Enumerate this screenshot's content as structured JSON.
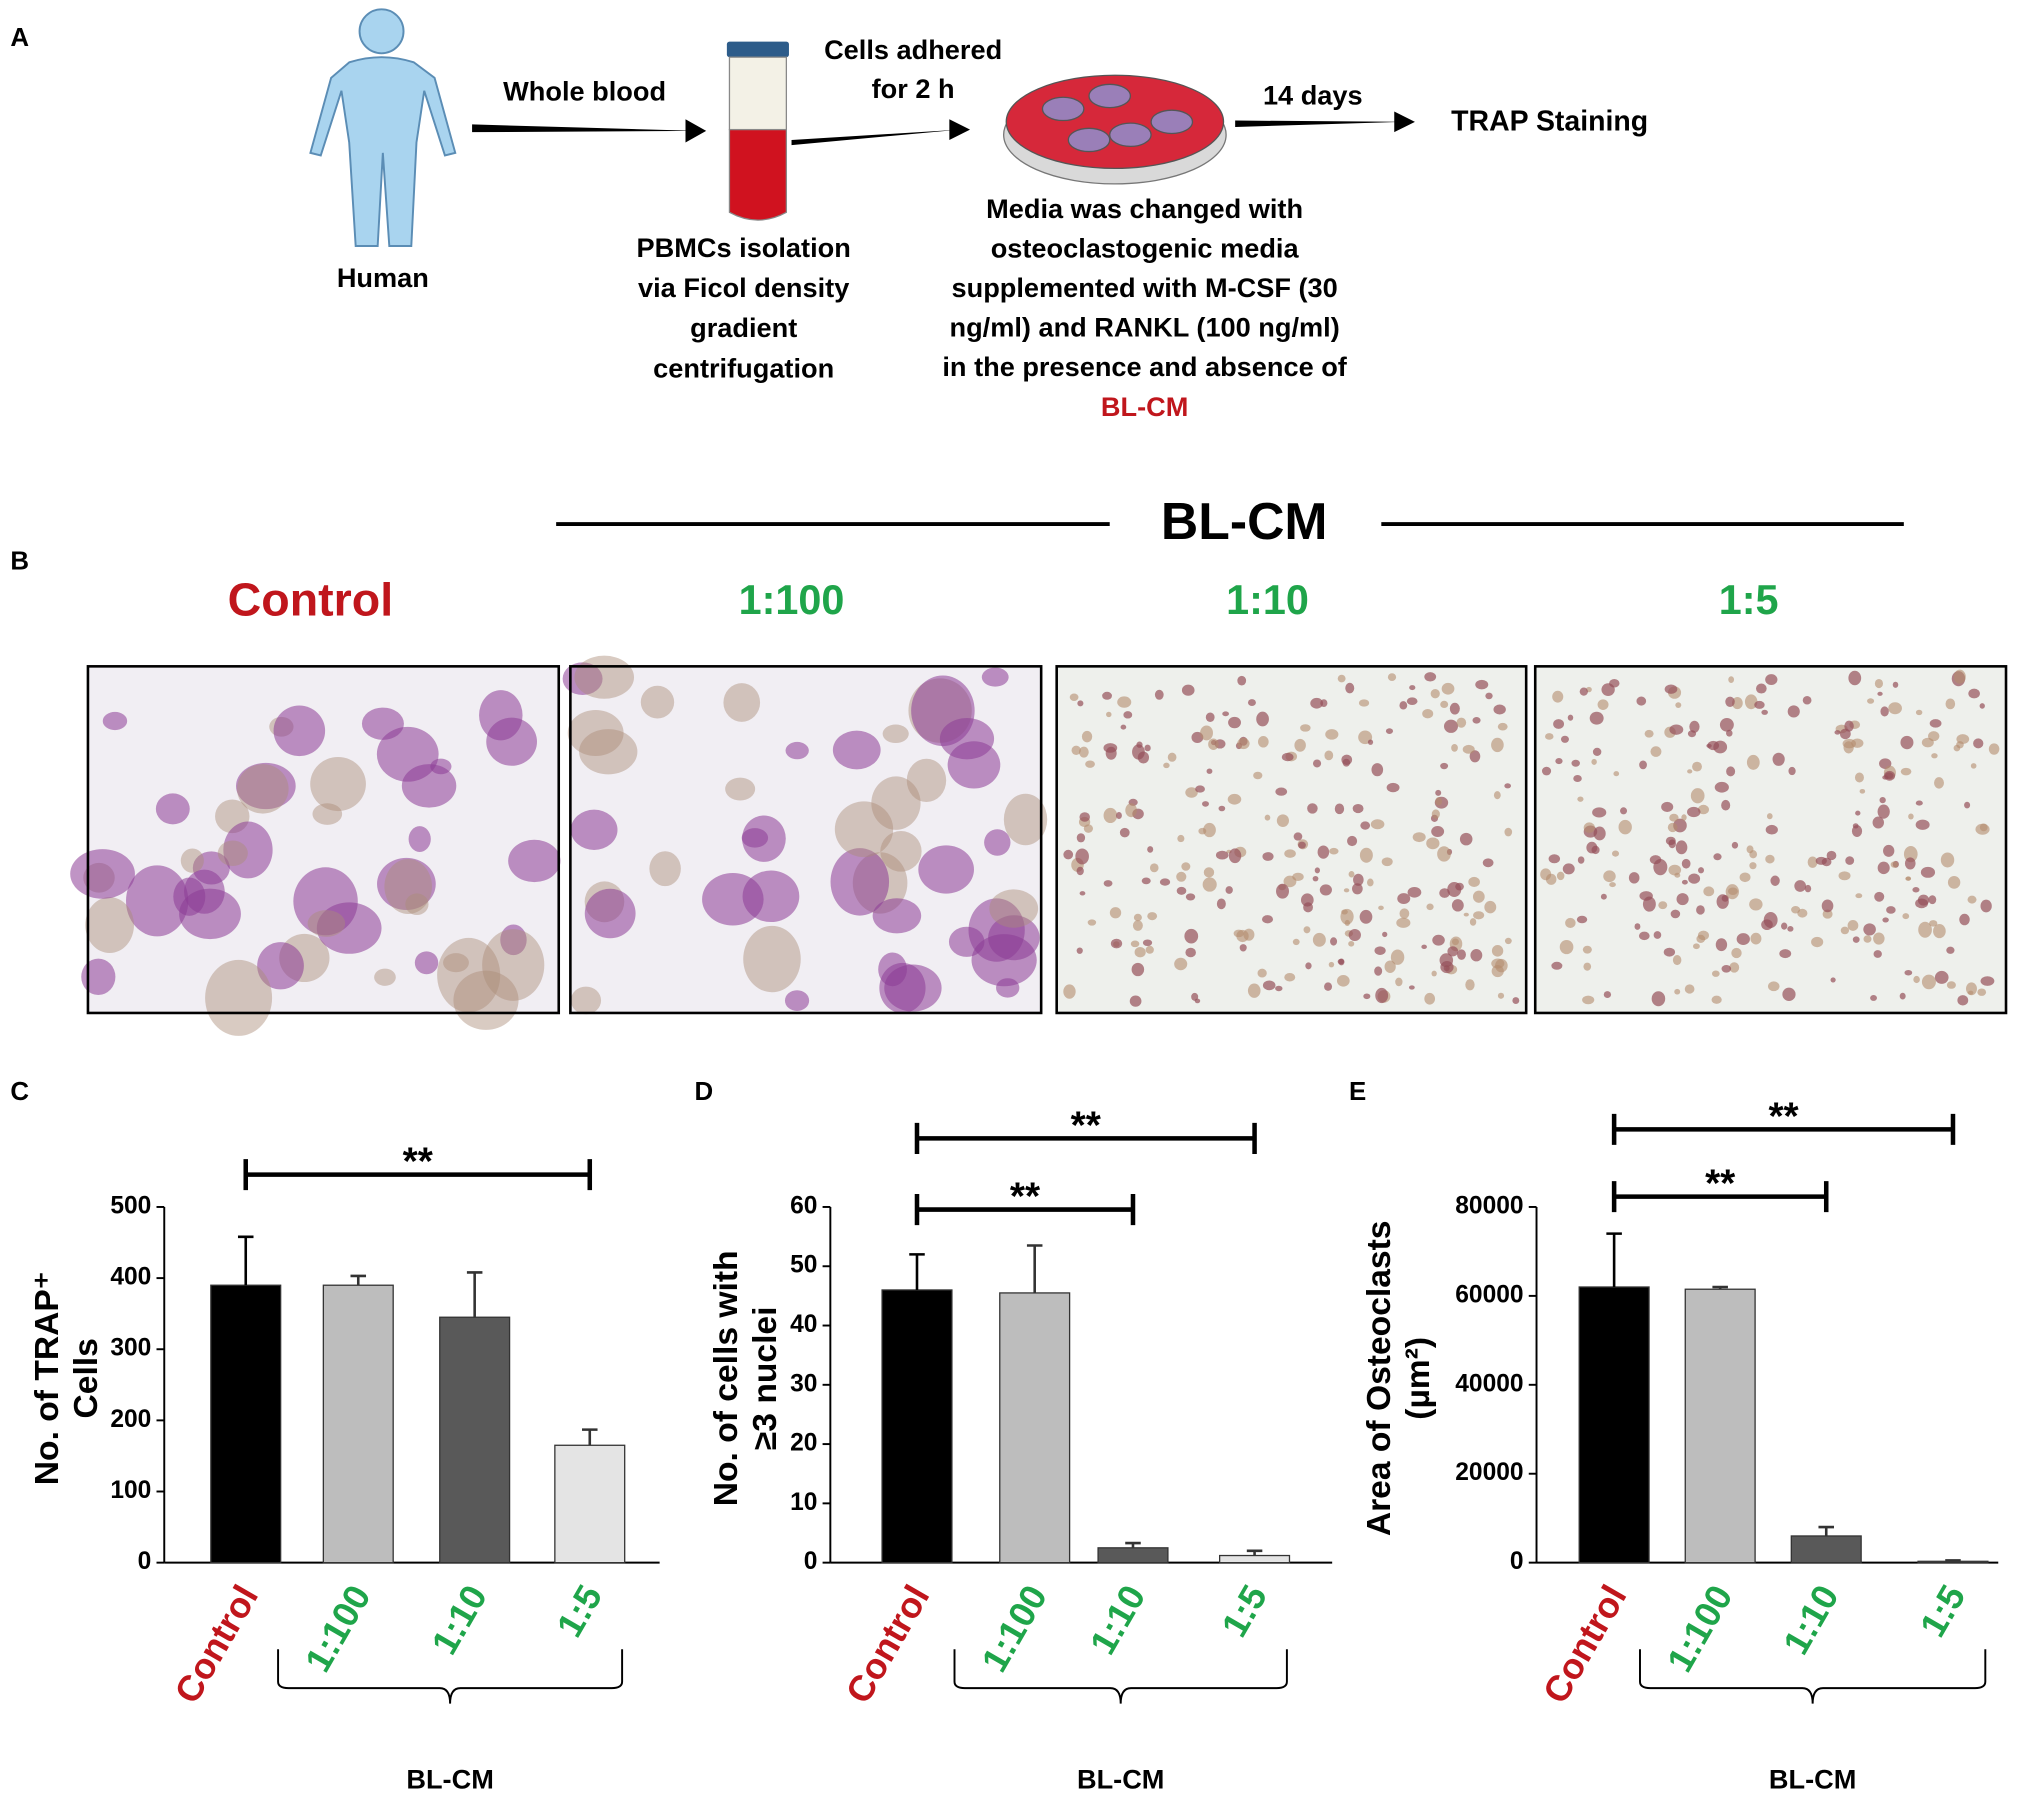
{
  "panel_a": {
    "letter": "A",
    "human": "Human",
    "whole_blood": "Whole blood",
    "adhered": [
      "Cells adhered",
      "for 2 h"
    ],
    "pbmc": [
      "PBMCs isolation",
      "via Ficol density",
      "gradient",
      "centrifugation"
    ],
    "days": "14 days",
    "trap": "TRAP Staining",
    "media": [
      "Media was changed with",
      "osteoclastogenic media",
      "supplemented with M-CSF (30",
      "ng/ml) and RANKL (100 ng/ml)",
      "in the presence and absence of"
    ],
    "media_agent": "BL-CM"
  },
  "panel_b": {
    "letter": "B",
    "group": "BL-CM",
    "labels": [
      "Control",
      "1:100",
      "1:10",
      "1:5"
    ],
    "label_colors": [
      "#c0161c",
      "#1fa54a",
      "#1fa54a",
      "#1fa54a"
    ]
  },
  "chart_data": [
    {
      "type": "bar",
      "letter": "C",
      "y_label": [
        "No. of TRAP⁺",
        "Cells"
      ],
      "categories": [
        "Control",
        "1:100",
        "1:10",
        "1:5"
      ],
      "category_colors": [
        "#c0161c",
        "#1fa54a",
        "#1fa54a",
        "#1fa54a"
      ],
      "values": [
        390,
        390,
        345,
        165
      ],
      "errors": [
        68,
        13,
        63,
        22
      ],
      "colors": [
        "#000000",
        "#bdbdbd",
        "#595959",
        "#e4e4e4"
      ],
      "ylim": [
        0,
        500
      ],
      "yticks": [
        0,
        100,
        200,
        300,
        400,
        500
      ],
      "group_label": "BL-CM",
      "significance": [
        {
          "from": 0,
          "to": 3,
          "label": "**"
        }
      ]
    },
    {
      "type": "bar",
      "letter": "D",
      "y_label": [
        "No. of cells with",
        "≥3 nuclei"
      ],
      "categories": [
        "Control",
        "1:100",
        "1:10",
        "1:5"
      ],
      "category_colors": [
        "#c0161c",
        "#1fa54a",
        "#1fa54a",
        "#1fa54a"
      ],
      "values": [
        46,
        45.5,
        2.5,
        1.2
      ],
      "errors": [
        6,
        8,
        0.8,
        0.8
      ],
      "colors": [
        "#000000",
        "#bdbdbd",
        "#595959",
        "#e4e4e4"
      ],
      "ylim": [
        0,
        60
      ],
      "yticks": [
        0,
        10,
        20,
        30,
        40,
        50,
        60
      ],
      "group_label": "BL-CM",
      "significance": [
        {
          "from": 0,
          "to": 2,
          "label": "**"
        },
        {
          "from": 0,
          "to": 3,
          "label": "**"
        }
      ]
    },
    {
      "type": "bar",
      "letter": "E",
      "y_label": [
        "Area of Osteoclasts",
        "(µm²)"
      ],
      "categories": [
        "Control",
        "1:100",
        "1:10",
        "1:5"
      ],
      "category_colors": [
        "#c0161c",
        "#1fa54a",
        "#1fa54a",
        "#1fa54a"
      ],
      "values": [
        62000,
        61500,
        6000,
        300
      ],
      "errors": [
        12000,
        500,
        2000,
        200
      ],
      "colors": [
        "#000000",
        "#bdbdbd",
        "#595959",
        "#e4e4e4"
      ],
      "ylim": [
        0,
        80000
      ],
      "yticks": [
        0,
        20000,
        40000,
        60000,
        80000
      ],
      "group_label": "BL-CM",
      "significance": [
        {
          "from": 0,
          "to": 2,
          "label": "**"
        },
        {
          "from": 0,
          "to": 3,
          "label": "**"
        }
      ]
    }
  ]
}
